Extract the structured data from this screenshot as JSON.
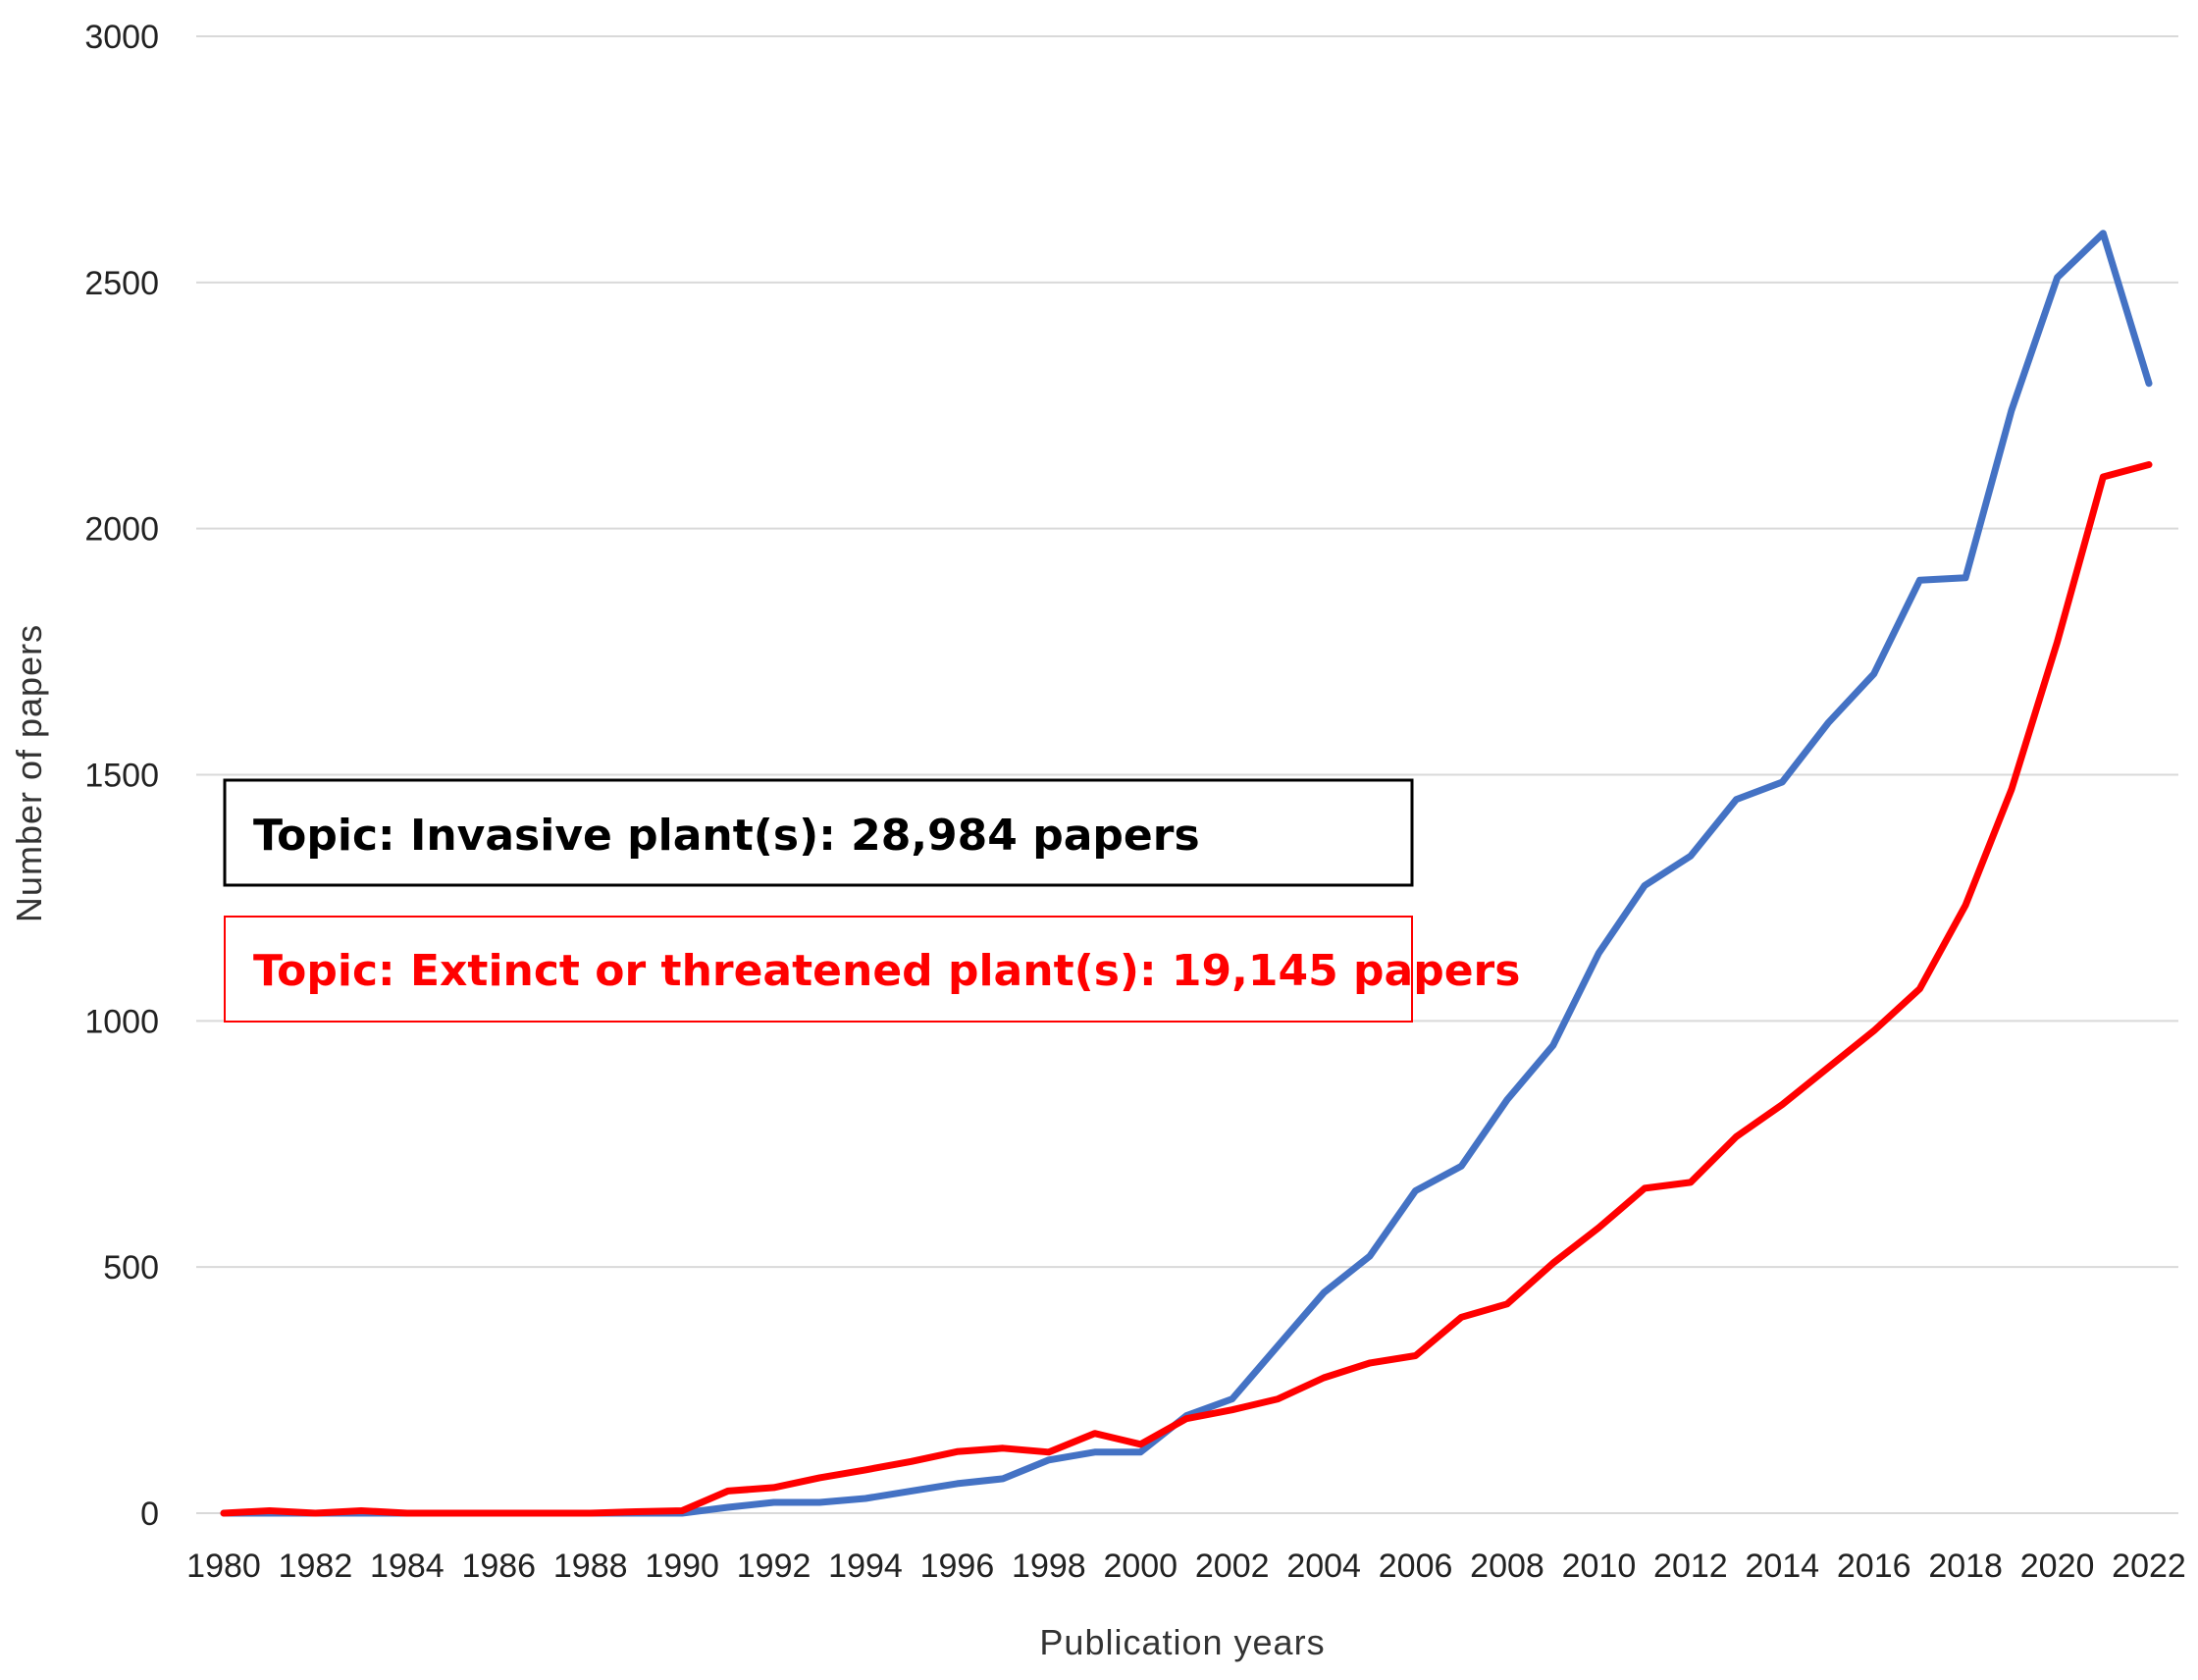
{
  "chart_data": {
    "type": "line",
    "title": "",
    "xlabel": "Publication years",
    "ylabel": "Number  of papers",
    "ylim": [
      0,
      3000
    ],
    "yticks": [
      0,
      500,
      1000,
      1500,
      2000,
      2500,
      3000
    ],
    "x": [
      1980,
      1981,
      1982,
      1983,
      1984,
      1985,
      1986,
      1987,
      1988,
      1989,
      1990,
      1991,
      1992,
      1993,
      1994,
      1995,
      1996,
      1997,
      1998,
      1999,
      2000,
      2001,
      2002,
      2003,
      2004,
      2005,
      2006,
      2007,
      2008,
      2009,
      2010,
      2011,
      2012,
      2013,
      2014,
      2015,
      2016,
      2017,
      2018,
      2019,
      2020,
      2021,
      2022
    ],
    "xtick_labels": [
      "1980",
      "1982",
      "1984",
      "1986",
      "1988",
      "1990",
      "1992",
      "1994",
      "1996",
      "1998",
      "2000",
      "2002",
      "2004",
      "2006",
      "2008",
      "2010",
      "2012",
      "2014",
      "2016",
      "2018",
      "2020",
      "2022"
    ],
    "grid": true,
    "series": [
      {
        "name": "Invasive plant(s)",
        "color": "#4472C4",
        "values": [
          0,
          0,
          0,
          0,
          0,
          0,
          0,
          0,
          0,
          0,
          0,
          12,
          22,
          22,
          30,
          45,
          60,
          70,
          108,
          124,
          124,
          198,
          232,
          340,
          448,
          522,
          655,
          705,
          840,
          950,
          1138,
          1275,
          1335,
          1450,
          1485,
          1605,
          1705,
          1895,
          1900,
          2240,
          2510,
          2600,
          2295
        ]
      },
      {
        "name": "Extinct or threatened plant(s)",
        "color": "#FF0000",
        "values": [
          0,
          5,
          0,
          5,
          0,
          0,
          0,
          0,
          0,
          3,
          5,
          45,
          52,
          72,
          88,
          105,
          125,
          132,
          124,
          162,
          140,
          192,
          210,
          232,
          275,
          305,
          320,
          398,
          425,
          508,
          580,
          660,
          672,
          765,
          830,
          905,
          980,
          1065,
          1235,
          1470,
          1770,
          2105,
          2130
        ]
      }
    ],
    "legend": {
      "placement": "center-left",
      "entries": [
        {
          "text": "Topic: Invasive plant(s): 28,984 papers",
          "color": "#000000"
        },
        {
          "text": "Topic: Extinct or threatened plant(s): 19,145 papers",
          "color": "#FF0000"
        }
      ]
    }
  }
}
